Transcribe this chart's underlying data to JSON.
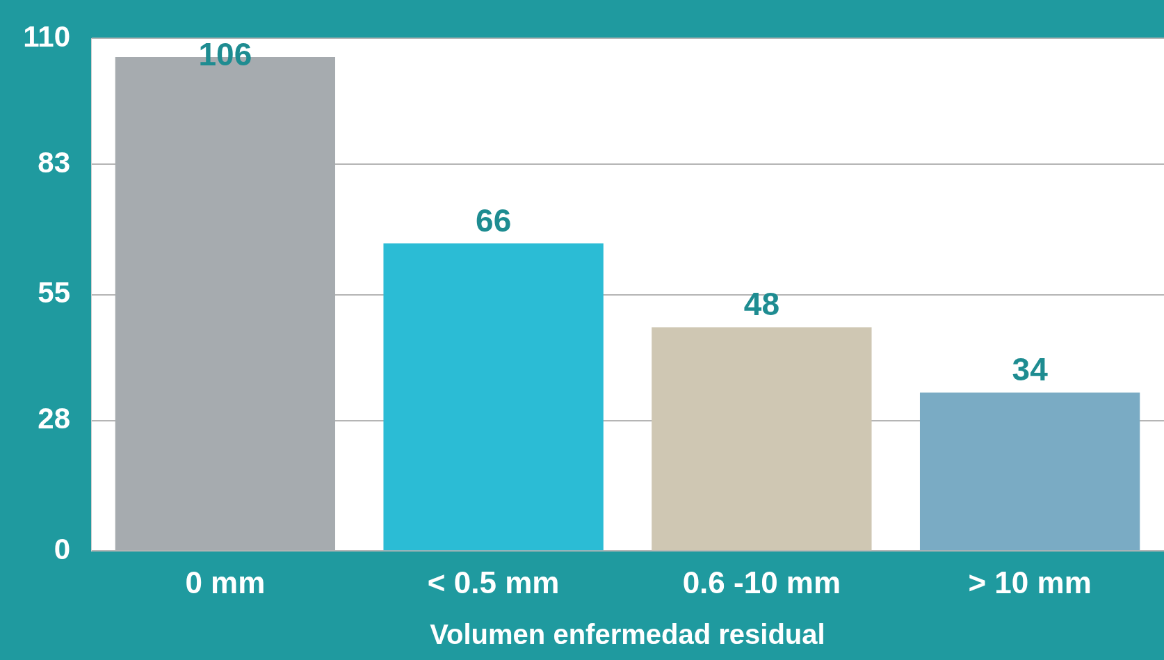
{
  "chart_data": {
    "type": "bar",
    "xlabel": "Volumen enfermedad residual",
    "categories": [
      "0 mm",
      "< 0.5 mm",
      "0.6 -10 mm",
      "> 10 mm"
    ],
    "values": [
      106,
      66,
      48,
      34
    ],
    "colors": [
      "#a6abaf",
      "#2bbcd5",
      "#cfc7b3",
      "#7aabc4"
    ],
    "ylim": [
      0,
      110
    ],
    "yticks": [
      0,
      28,
      55,
      83,
      110
    ],
    "grid": "y",
    "data_labels": true
  }
}
